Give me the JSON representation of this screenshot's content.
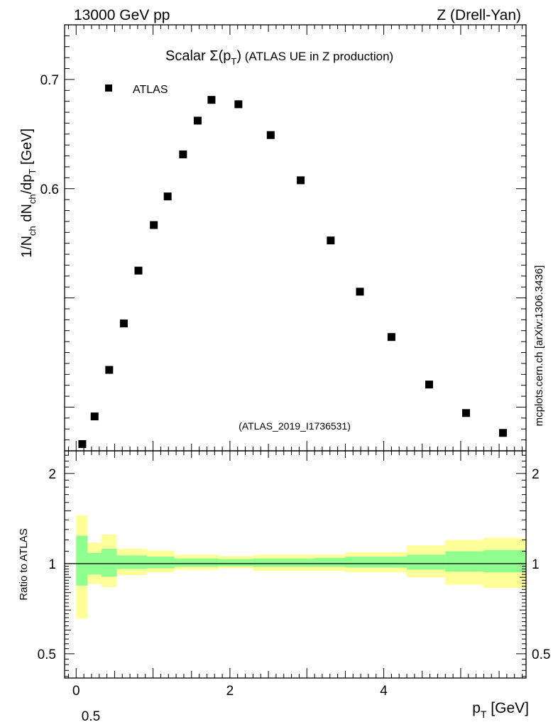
{
  "header": {
    "left": "13000 GeV pp",
    "right": "Z (Drell-Yan)"
  },
  "chart_data": {
    "type": "scatter",
    "title": "Scalar Σ(pT) (ATLAS UE in Z production)",
    "analysis_id": "(ATLAS_2019_I1736531)",
    "side_label": "mcplots.cern.ch [arXiv:1306.3436]",
    "xlabel": "pT [GeV]",
    "ylabel": "1/Nch dNch/dpT [GeV]",
    "xlim": [
      -0.15,
      5.85
    ],
    "ylim": [
      0.36,
      0.75
    ],
    "x_ticks": [
      "0",
      "2",
      "4"
    ],
    "y_tick_labels": [
      "0.6",
      "0.7"
    ],
    "stray_label": "0.5",
    "legend": {
      "entries": [
        "ATLAS"
      ],
      "position": "top-left",
      "marker": "square"
    },
    "series": [
      {
        "name": "ATLAS",
        "x": [
          0.08,
          0.24,
          0.43,
          0.62,
          0.81,
          1.01,
          1.19,
          1.39,
          1.58,
          1.76,
          2.11,
          2.53,
          2.92,
          3.31,
          3.69,
          4.1,
          4.59,
          5.07,
          5.55
        ],
        "y": [
          0.3662,
          0.3915,
          0.4341,
          0.4766,
          0.525,
          0.5667,
          0.5929,
          0.6314,
          0.6623,
          0.6813,
          0.6773,
          0.6491,
          0.6077,
          0.5526,
          0.5057,
          0.4642,
          0.4207,
          0.3946,
          0.3764
        ]
      }
    ],
    "ratio_panel": {
      "ylabel": "Ratio to ATLAS",
      "ylim": [
        0.415,
        2.38
      ],
      "log_scale": true,
      "y_tick_labels": [
        "0.5",
        "1",
        "2"
      ],
      "bins": [
        {
          "x0": 0.0,
          "x1": 0.15,
          "inner": [
            0.845,
            1.24
          ],
          "outer": [
            0.655,
            1.45
          ]
        },
        {
          "x0": 0.15,
          "x1": 0.33,
          "inner": [
            0.92,
            1.085
          ],
          "outer": [
            0.855,
            1.175
          ]
        },
        {
          "x0": 0.33,
          "x1": 0.53,
          "inner": [
            0.905,
            1.12
          ],
          "outer": [
            0.835,
            1.25
          ]
        },
        {
          "x0": 0.53,
          "x1": 0.92,
          "inner": [
            0.96,
            1.065
          ],
          "outer": [
            0.915,
            1.12
          ]
        },
        {
          "x0": 0.92,
          "x1": 1.28,
          "inner": [
            0.965,
            1.055
          ],
          "outer": [
            0.935,
            1.105
          ]
        },
        {
          "x0": 1.28,
          "x1": 1.85,
          "inner": [
            0.975,
            1.04
          ],
          "outer": [
            0.955,
            1.07
          ]
        },
        {
          "x0": 1.85,
          "x1": 2.3,
          "inner": [
            0.98,
            1.035
          ],
          "outer": [
            0.965,
            1.06
          ]
        },
        {
          "x0": 2.3,
          "x1": 3.1,
          "inner": [
            0.975,
            1.04
          ],
          "outer": [
            0.945,
            1.07
          ]
        },
        {
          "x0": 3.1,
          "x1": 3.5,
          "inner": [
            0.975,
            1.045
          ],
          "outer": [
            0.945,
            1.07
          ]
        },
        {
          "x0": 3.5,
          "x1": 4.3,
          "inner": [
            0.97,
            1.055
          ],
          "outer": [
            0.935,
            1.09
          ]
        },
        {
          "x0": 4.3,
          "x1": 4.8,
          "inner": [
            0.955,
            1.07
          ],
          "outer": [
            0.9,
            1.15
          ]
        },
        {
          "x0": 4.8,
          "x1": 5.3,
          "inner": [
            0.94,
            1.1
          ],
          "outer": [
            0.85,
            1.2
          ]
        },
        {
          "x0": 5.3,
          "x1": 5.85,
          "inner": [
            0.935,
            1.11
          ],
          "outer": [
            0.83,
            1.22
          ]
        }
      ]
    }
  },
  "colors": {
    "inner_band": "#8fff8f",
    "outer_band": "#ffff99",
    "marker": "#000000",
    "axis": "#000000",
    "analysis_id": "#999999",
    "side_label": "#666666"
  }
}
